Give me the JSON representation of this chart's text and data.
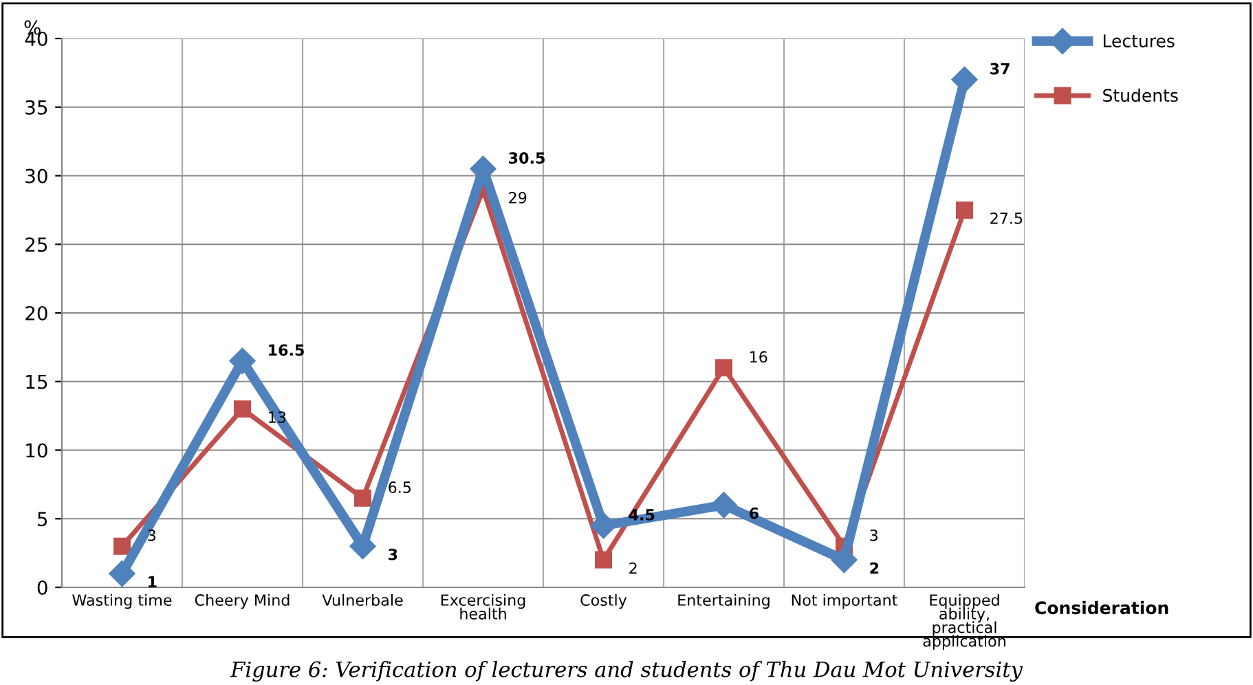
{
  "chart_data": {
    "type": "line",
    "ylabel": "%",
    "xlabel": "Consideration",
    "categories": [
      "Wasting time",
      "Cheery Mind",
      "Vulnerbale",
      "Excercising\nhealth",
      "Costly",
      "Entertaining",
      "Not important",
      "Equipped\nability,\npractical\napplication"
    ],
    "series": [
      {
        "name": "Lectures",
        "color": "#4f81bd",
        "marker": "diamond",
        "values": [
          1,
          16.5,
          3,
          30.5,
          4.5,
          6,
          2,
          37
        ]
      },
      {
        "name": "Students",
        "color": "#c0504d",
        "marker": "square",
        "values": [
          3,
          13,
          6.5,
          29,
          2,
          16,
          3,
          27.5
        ]
      }
    ],
    "ylim": [
      0,
      40
    ],
    "yticks": [
      0,
      5,
      10,
      15,
      20,
      25,
      30,
      35,
      40
    ],
    "grid": true,
    "legend": "top right",
    "data_labels": true,
    "annotations": [
      "Figure 6: Verification of lecturers and students of Thu Dau Mot University"
    ]
  }
}
